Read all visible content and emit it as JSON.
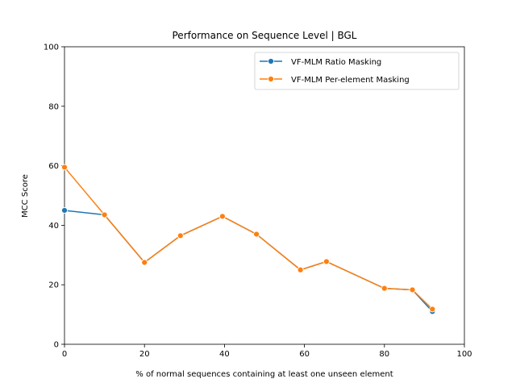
{
  "chart_data": {
    "type": "line",
    "title": "Performance on Sequence Level | BGL",
    "xlabel": "% of normal sequences containing at least one unseen element",
    "ylabel": "MCC Score",
    "xlim": [
      0,
      100
    ],
    "ylim": [
      0,
      100
    ],
    "xticks": [
      0,
      20,
      40,
      60,
      80,
      100
    ],
    "yticks": [
      0,
      20,
      40,
      60,
      80,
      100
    ],
    "grid": false,
    "legend_position": "top-right",
    "series": [
      {
        "name": "VF-MLM Ratio Masking",
        "color": "#1f77b4",
        "x": [
          0,
          10,
          20,
          29,
          39.5,
          48,
          59,
          65.5,
          80,
          87,
          92
        ],
        "y": [
          45,
          43.5,
          27.5,
          36.5,
          43,
          37,
          25,
          27.8,
          18.8,
          18.3,
          11
        ]
      },
      {
        "name": "VF-MLM Per-element Masking",
        "color": "#ff7f0e",
        "x": [
          0,
          10,
          20,
          29,
          39.5,
          48,
          59,
          65.5,
          80,
          87,
          92
        ],
        "y": [
          59.5,
          43.5,
          27.5,
          36.5,
          43,
          37,
          25,
          27.8,
          18.8,
          18.3,
          11.8
        ]
      }
    ]
  }
}
